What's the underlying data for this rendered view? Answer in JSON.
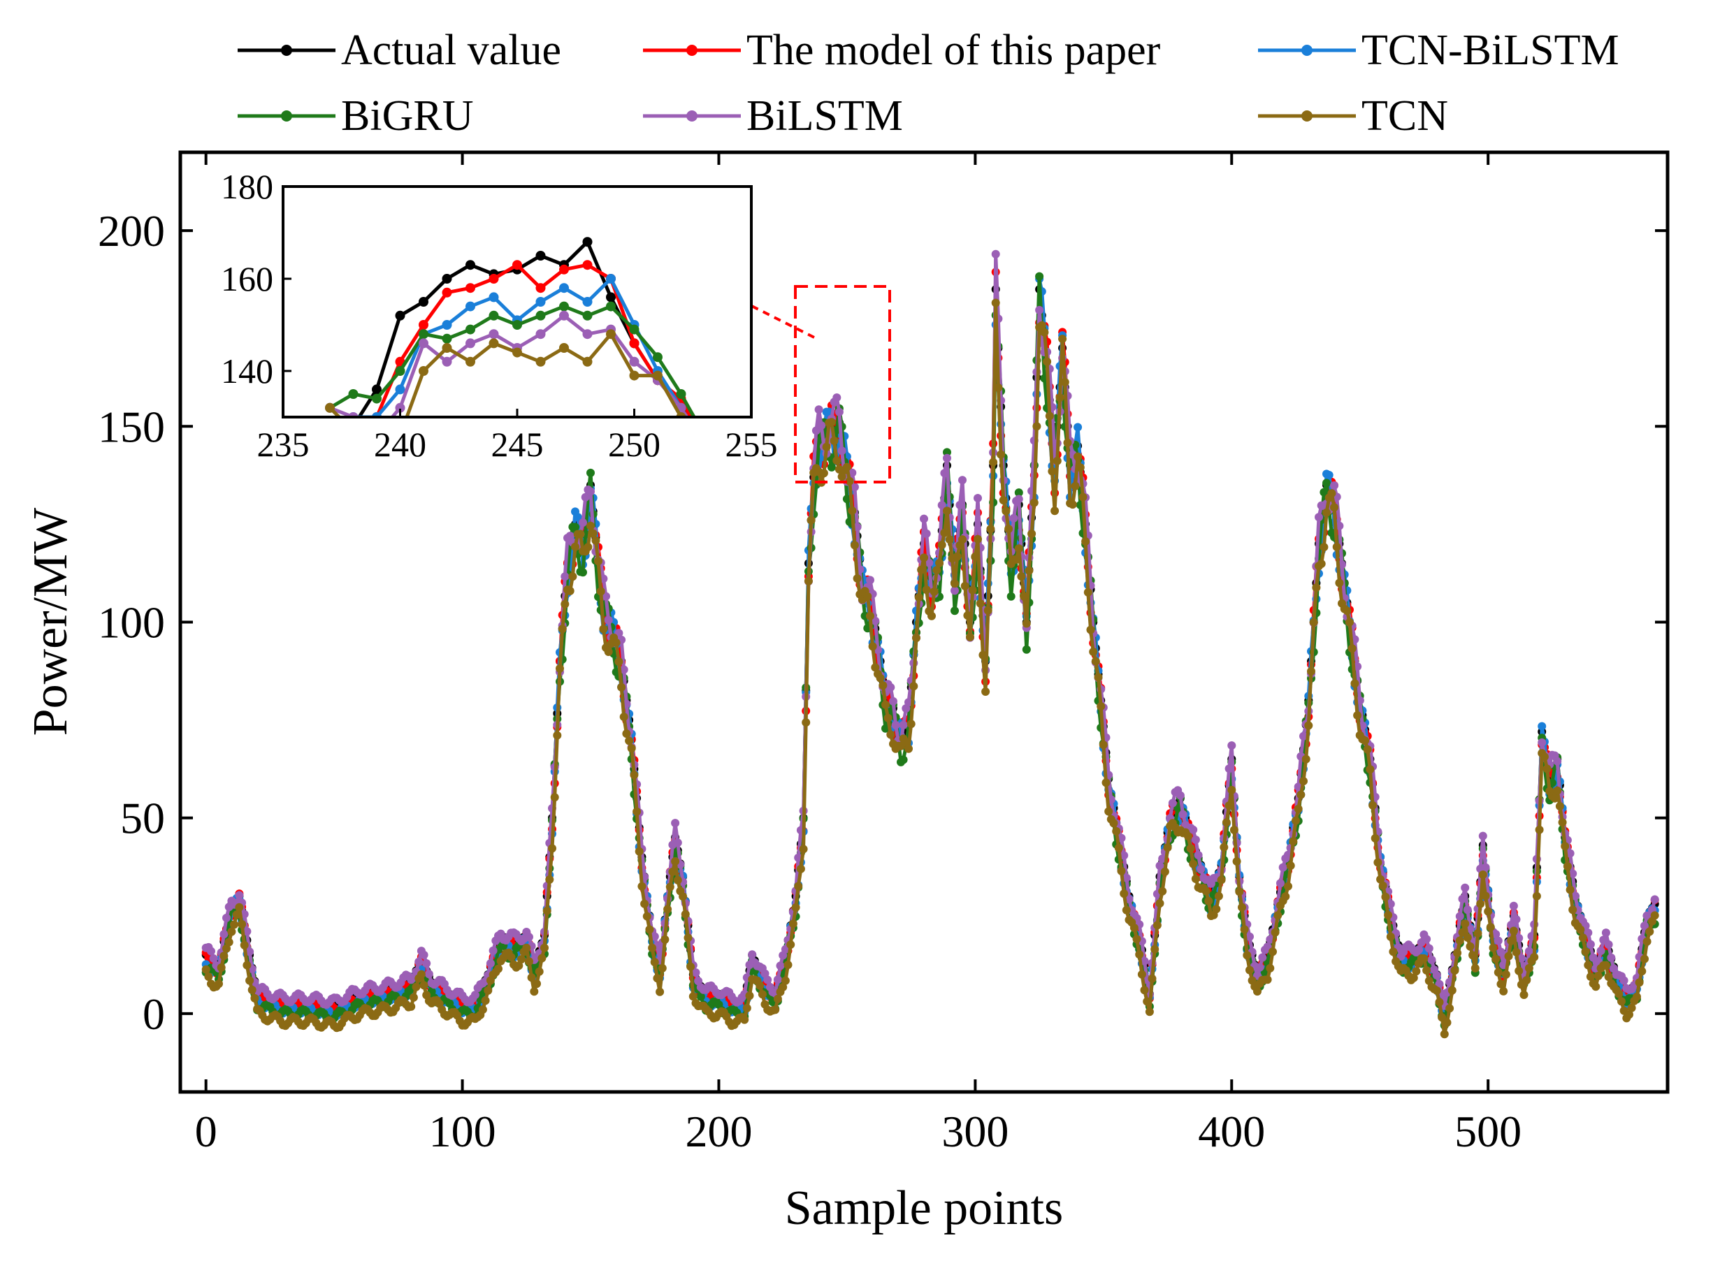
{
  "chart_data": {
    "type": "line",
    "title": "",
    "xlabel": "Sample points",
    "ylabel": "Power/MW",
    "xlim": [
      -10,
      570
    ],
    "ylim": [
      -20,
      220
    ],
    "xticks": [
      0,
      100,
      200,
      300,
      400,
      500
    ],
    "yticks": [
      0,
      50,
      100,
      150,
      200
    ],
    "grid": false,
    "legend_position": "top",
    "legend_entries": [
      {
        "name": "Actual value",
        "color": "#000000"
      },
      {
        "name": "The model of this paper",
        "color": "#ff0000"
      },
      {
        "name": "TCN-BiLSTM",
        "color": "#1a7fd9"
      },
      {
        "name": "BiGRU",
        "color": "#1f7a1a"
      },
      {
        "name": "BiLSTM",
        "color": "#9b5fb5"
      },
      {
        "name": "TCN",
        "color": "#8b6a14"
      }
    ],
    "actual_keypoints": [
      [
        0,
        15
      ],
      [
        5,
        12
      ],
      [
        10,
        28
      ],
      [
        13,
        30
      ],
      [
        17,
        15
      ],
      [
        20,
        5
      ],
      [
        30,
        3
      ],
      [
        40,
        3
      ],
      [
        50,
        2
      ],
      [
        60,
        5
      ],
      [
        70,
        6
      ],
      [
        80,
        8
      ],
      [
        84,
        14
      ],
      [
        88,
        8
      ],
      [
        95,
        5
      ],
      [
        100,
        3
      ],
      [
        105,
        3
      ],
      [
        110,
        10
      ],
      [
        115,
        20
      ],
      [
        120,
        18
      ],
      [
        125,
        20
      ],
      [
        128,
        12
      ],
      [
        132,
        20
      ],
      [
        135,
        50
      ],
      [
        138,
        90
      ],
      [
        141,
        115
      ],
      [
        144,
        125
      ],
      [
        147,
        120
      ],
      [
        150,
        135
      ],
      [
        153,
        115
      ],
      [
        155,
        105
      ],
      [
        158,
        100
      ],
      [
        162,
        90
      ],
      [
        166,
        70
      ],
      [
        170,
        40
      ],
      [
        174,
        20
      ],
      [
        177,
        12
      ],
      [
        180,
        30
      ],
      [
        183,
        45
      ],
      [
        186,
        35
      ],
      [
        190,
        10
      ],
      [
        195,
        5
      ],
      [
        200,
        5
      ],
      [
        205,
        3
      ],
      [
        210,
        3
      ],
      [
        213,
        15
      ],
      [
        218,
        8
      ],
      [
        222,
        5
      ],
      [
        226,
        15
      ],
      [
        230,
        30
      ],
      [
        233,
        50
      ],
      [
        235,
        115
      ],
      [
        237,
        137
      ],
      [
        239,
        147
      ],
      [
        241,
        148
      ],
      [
        243,
        150
      ],
      [
        245,
        149
      ],
      [
        247,
        151
      ],
      [
        249,
        143
      ],
      [
        251,
        135
      ],
      [
        253,
        128
      ],
      [
        256,
        110
      ],
      [
        259,
        105
      ],
      [
        262,
        95
      ],
      [
        265,
        80
      ],
      [
        268,
        78
      ],
      [
        271,
        70
      ],
      [
        274,
        75
      ],
      [
        277,
        100
      ],
      [
        280,
        120
      ],
      [
        283,
        110
      ],
      [
        286,
        115
      ],
      [
        289,
        140
      ],
      [
        292,
        110
      ],
      [
        295,
        130
      ],
      [
        298,
        100
      ],
      [
        301,
        125
      ],
      [
        304,
        90
      ],
      [
        307,
        140
      ],
      [
        308,
        185
      ],
      [
        311,
        140
      ],
      [
        314,
        115
      ],
      [
        317,
        130
      ],
      [
        320,
        100
      ],
      [
        323,
        140
      ],
      [
        325,
        185
      ],
      [
        328,
        165
      ],
      [
        331,
        140
      ],
      [
        334,
        170
      ],
      [
        337,
        140
      ],
      [
        340,
        145
      ],
      [
        343,
        125
      ],
      [
        346,
        100
      ],
      [
        349,
        80
      ],
      [
        352,
        60
      ],
      [
        356,
        45
      ],
      [
        360,
        30
      ],
      [
        364,
        20
      ],
      [
        368,
        5
      ],
      [
        372,
        35
      ],
      [
        376,
        50
      ],
      [
        380,
        55
      ],
      [
        384,
        45
      ],
      [
        388,
        38
      ],
      [
        392,
        30
      ],
      [
        396,
        38
      ],
      [
        400,
        65
      ],
      [
        403,
        35
      ],
      [
        406,
        20
      ],
      [
        410,
        10
      ],
      [
        414,
        15
      ],
      [
        418,
        28
      ],
      [
        422,
        40
      ],
      [
        426,
        55
      ],
      [
        430,
        80
      ],
      [
        434,
        120
      ],
      [
        437,
        135
      ],
      [
        440,
        130
      ],
      [
        443,
        115
      ],
      [
        446,
        100
      ],
      [
        450,
        80
      ],
      [
        454,
        65
      ],
      [
        458,
        40
      ],
      [
        462,
        25
      ],
      [
        466,
        15
      ],
      [
        470,
        15
      ],
      [
        475,
        18
      ],
      [
        480,
        10
      ],
      [
        483,
        0
      ],
      [
        487,
        15
      ],
      [
        491,
        30
      ],
      [
        495,
        15
      ],
      [
        498,
        43
      ],
      [
        502,
        20
      ],
      [
        506,
        12
      ],
      [
        510,
        25
      ],
      [
        514,
        10
      ],
      [
        518,
        20
      ],
      [
        521,
        72
      ],
      [
        524,
        60
      ],
      [
        527,
        65
      ],
      [
        530,
        45
      ],
      [
        534,
        30
      ],
      [
        538,
        20
      ],
      [
        542,
        12
      ],
      [
        546,
        18
      ],
      [
        550,
        10
      ],
      [
        554,
        5
      ],
      [
        558,
        8
      ],
      [
        562,
        25
      ],
      [
        565,
        28
      ]
    ],
    "series_offsets_mw": {
      "Actual value": 0,
      "The model of this paper": -1,
      "TCN-BiLSTM": -2,
      "BiGRU": -3,
      "BiLSTM": 1,
      "TCN": -5
    },
    "inset": {
      "xlim": [
        235,
        255
      ],
      "ylim": [
        130,
        180
      ],
      "xticks": [
        235,
        240,
        245,
        250,
        255
      ],
      "yticks": [
        140,
        160,
        180
      ],
      "series": [
        {
          "name": "Actual value",
          "x": [
            237,
            238,
            239,
            240,
            241,
            242,
            243,
            244,
            245,
            246,
            247,
            248,
            249,
            250,
            251,
            252,
            253
          ],
          "values": [
            124,
            128,
            136,
            152,
            155,
            160,
            163,
            161,
            162,
            165,
            163,
            168,
            156,
            146,
            138,
            133,
            126
          ]
        },
        {
          "name": "The model of this paper",
          "x": [
            237,
            238,
            239,
            240,
            241,
            242,
            243,
            244,
            245,
            246,
            247,
            248,
            249,
            250,
            251,
            252,
            253
          ],
          "values": [
            121,
            124,
            130,
            142,
            150,
            157,
            158,
            160,
            163,
            158,
            162,
            163,
            160,
            146,
            138,
            134,
            124
          ]
        },
        {
          "name": "TCN-BiLSTM",
          "x": [
            237,
            238,
            239,
            240,
            241,
            242,
            243,
            244,
            245,
            246,
            247,
            248,
            249,
            250,
            251,
            252,
            253
          ],
          "values": [
            121,
            130,
            130,
            136,
            148,
            150,
            154,
            156,
            151,
            155,
            158,
            155,
            160,
            150,
            140,
            132,
            123
          ]
        },
        {
          "name": "BiGRU",
          "x": [
            237,
            238,
            239,
            240,
            241,
            242,
            243,
            244,
            245,
            246,
            247,
            248,
            249,
            250,
            251,
            252,
            253
          ],
          "values": [
            132,
            135,
            134,
            140,
            148,
            147,
            149,
            152,
            150,
            152,
            154,
            152,
            154,
            149,
            143,
            135,
            126
          ]
        },
        {
          "name": "BiLSTM",
          "x": [
            237,
            238,
            239,
            240,
            241,
            242,
            243,
            244,
            245,
            246,
            247,
            248,
            249,
            250,
            251,
            252,
            253
          ],
          "values": [
            132,
            130,
            126,
            132,
            146,
            142,
            146,
            148,
            145,
            148,
            152,
            148,
            149,
            142,
            138,
            132,
            124
          ]
        },
        {
          "name": "TCN",
          "x": [
            237,
            238,
            239,
            240,
            241,
            242,
            243,
            244,
            245,
            246,
            247,
            248,
            249,
            250,
            251,
            252,
            253
          ],
          "values": [
            132,
            127,
            120,
            126,
            140,
            145,
            142,
            146,
            144,
            142,
            145,
            142,
            148,
            139,
            139,
            130,
            120
          ]
        }
      ]
    }
  }
}
